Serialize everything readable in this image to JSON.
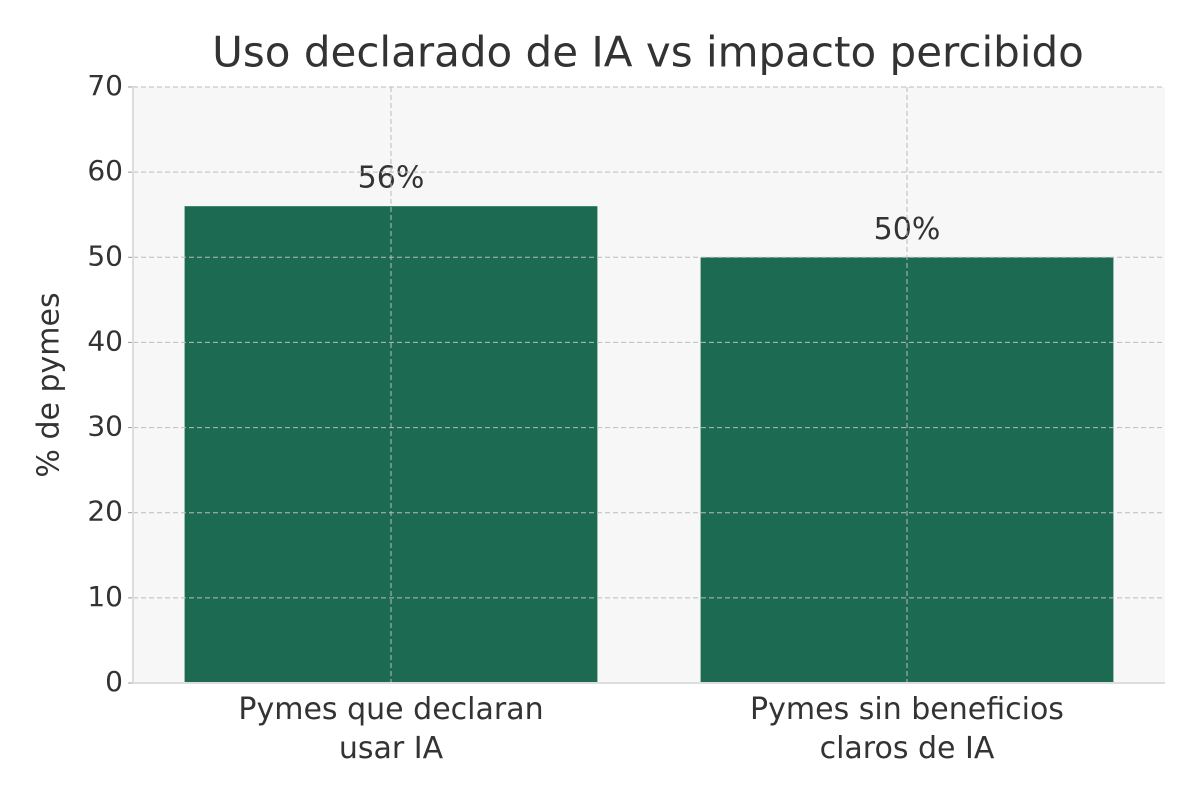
{
  "chart_data": {
    "type": "bar",
    "title": "Uso declarado de IA vs impacto percibido",
    "y_label": "% de pymes",
    "categories": [
      "Pymes que declaran\nusar IA",
      "Pymes sin beneficios\nclaros de IA"
    ],
    "values": [
      56,
      50
    ],
    "value_labels": [
      "56%",
      "50%"
    ],
    "color": "#1b6a51",
    "ylim": [
      0,
      70
    ],
    "yticks": [
      0,
      10,
      20,
      30,
      40,
      50,
      60,
      70
    ],
    "grid": true
  }
}
